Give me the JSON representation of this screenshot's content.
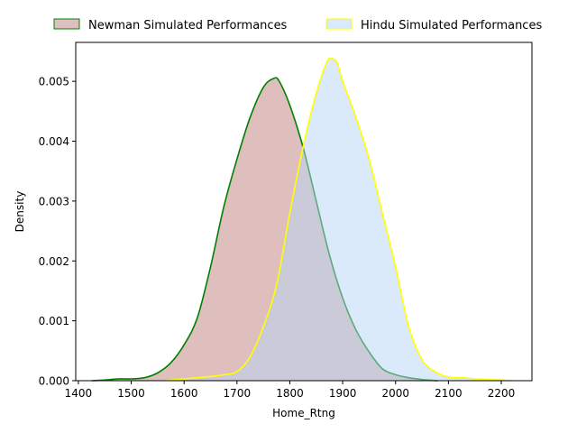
{
  "chart_data": {
    "type": "area",
    "title": "",
    "xlabel": "Home_Rtng",
    "ylabel": "Density",
    "xlim": [
      1395,
      2258
    ],
    "ylim": [
      0,
      0.00565
    ],
    "x_ticks": [
      1400,
      1500,
      1600,
      1700,
      1800,
      1900,
      2000,
      2100,
      2200
    ],
    "x_tick_labels": [
      "1400",
      "1500",
      "1600",
      "1700",
      "1800",
      "1900",
      "2000",
      "2100",
      "2200"
    ],
    "y_ticks": [
      0,
      0.001,
      0.002,
      0.003,
      0.004,
      0.005
    ],
    "y_tick_labels": [
      "0.000",
      "0.001",
      "0.002",
      "0.003",
      "0.004",
      "0.005"
    ],
    "grid": false,
    "legend_position": "top-center, above plot",
    "series": [
      {
        "name": "Newman Simulated Performances",
        "fill_color": "#c0807c",
        "line_color": "#008000",
        "x": [
          1425,
          1450,
          1475,
          1500,
          1525,
          1550,
          1575,
          1600,
          1625,
          1650,
          1675,
          1700,
          1725,
          1750,
          1770,
          1780,
          1800,
          1825,
          1850,
          1875,
          1900,
          1925,
          1950,
          1975,
          2000,
          2025,
          2050,
          2080
        ],
        "y": [
          0.0,
          1e-05,
          3e-05,
          3e-05,
          5e-05,
          0.00013,
          0.0003,
          0.0006,
          0.00105,
          0.0019,
          0.0029,
          0.0037,
          0.0044,
          0.0049,
          0.00505,
          0.005,
          0.0046,
          0.0039,
          0.003,
          0.0021,
          0.00138,
          0.00085,
          0.00048,
          0.0002,
          0.0001,
          5e-05,
          2e-05,
          0.0
        ]
      },
      {
        "name": "Hindu Simulated Performances",
        "fill_color": "#b8d6f5",
        "line_color": "#ffff00",
        "x": [
          1560,
          1600,
          1625,
          1650,
          1675,
          1700,
          1725,
          1750,
          1775,
          1800,
          1825,
          1850,
          1870,
          1880,
          1890,
          1900,
          1925,
          1950,
          1975,
          2000,
          2025,
          2050,
          2075,
          2100,
          2125,
          2150,
          2175,
          2200,
          2220
        ],
        "y": [
          0.0,
          3e-05,
          5e-05,
          7e-05,
          0.0001,
          0.00015,
          0.0004,
          0.0009,
          0.0016,
          0.0028,
          0.0039,
          0.0048,
          0.00532,
          0.00538,
          0.0053,
          0.005,
          0.0044,
          0.0037,
          0.0028,
          0.0019,
          0.0009,
          0.00035,
          0.00015,
          6e-05,
          5e-05,
          3e-05,
          2e-05,
          1e-05,
          0.0
        ]
      }
    ]
  }
}
